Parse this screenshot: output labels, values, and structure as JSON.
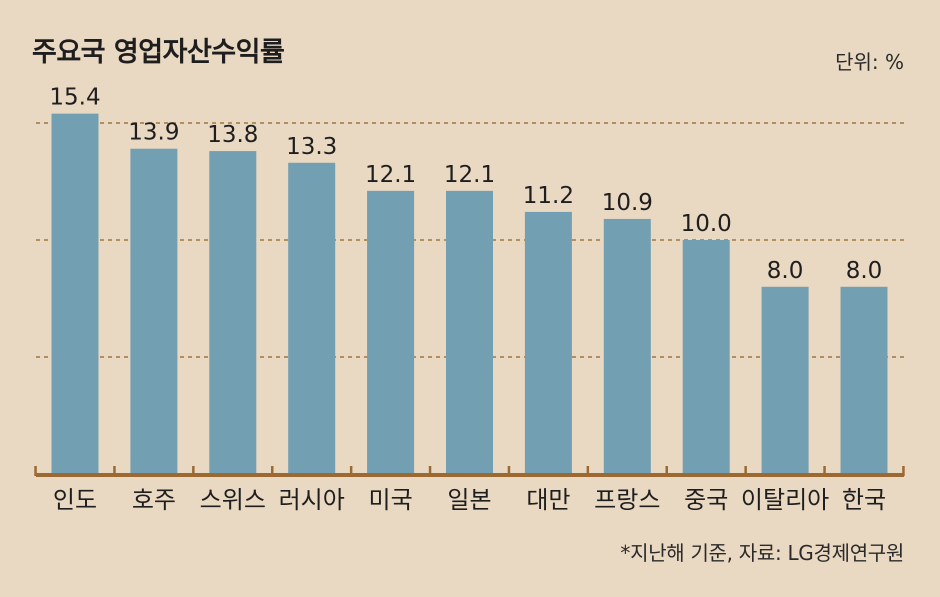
{
  "title": "주요국 영업자산수익률",
  "unit_label": "단위: %",
  "source": "*지난해 기준, 자료: LG경제연구원",
  "colors": {
    "background": "#e9d8c2",
    "bar": "#739fb3",
    "axis": "#9a6a32",
    "grid": "#a0773f"
  },
  "chart_data": {
    "type": "bar",
    "title": "주요국 영업자산수익률",
    "categories": [
      "인도",
      "호주",
      "스위스",
      "러시아",
      "미국",
      "일본",
      "대만",
      "프랑스",
      "중국",
      "이탈리아",
      "한국"
    ],
    "values": [
      15.4,
      13.9,
      13.8,
      13.3,
      12.1,
      12.1,
      11.2,
      10.9,
      10.0,
      8.0,
      8.0
    ],
    "value_labels": [
      "15.4",
      "13.9",
      "13.8",
      "13.3",
      "12.1",
      "12.1",
      "11.2",
      "10.9",
      "10.0",
      "8.0",
      "8.0"
    ],
    "xlabel": "",
    "ylabel": "",
    "ylim": [
      0,
      15
    ],
    "gridlines": [
      5,
      10,
      15
    ],
    "grid": true,
    "legend": "none"
  }
}
